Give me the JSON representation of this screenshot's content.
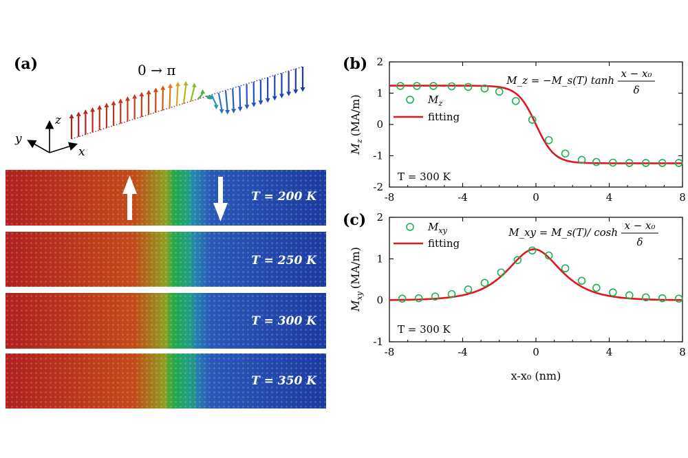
{
  "panel_a": {
    "label": "(a)",
    "rotation_label": "0 → π",
    "axes": {
      "z": "z",
      "y": "y",
      "x": "x"
    },
    "snapshots": [
      {
        "temp_label": "T = 200 K",
        "wall_width": 1.0
      },
      {
        "temp_label": "T = 250 K",
        "wall_width": 1.15
      },
      {
        "temp_label": "T = 300 K",
        "wall_width": 1.3
      },
      {
        "temp_label": "T = 350 K",
        "wall_width": 1.5
      }
    ],
    "colors": {
      "up": "#b22222",
      "down": "#1f3fa8",
      "wall": "#22aa44"
    }
  },
  "chart_data": [
    {
      "type": "scatter+line",
      "panel_label": "(b)",
      "quantity": "Mz",
      "ylabel_main": "M",
      "ylabel_sub": "z",
      "ylabel_unit": "(MA/m)",
      "xlabel": "",
      "xlim": [
        -8,
        8
      ],
      "ylim": [
        -2,
        2
      ],
      "xticks": [
        "-8",
        "-4",
        "0",
        "4",
        "8"
      ],
      "yticks": [
        "2",
        "1",
        "0",
        "-1",
        "-2"
      ],
      "legend_symbol": "M",
      "legend_symbol_sub": "z",
      "legend_fit": "fitting",
      "annotation": "T = 300 K",
      "formula_lhs": "M_z = −M_s(T) tanh",
      "formula_num": "x − x₀",
      "formula_den": "δ",
      "fit": {
        "Ms": 1.24,
        "x0": 0,
        "delta": 1.0,
        "kind": "tanh"
      },
      "points": {
        "x": [
          -7.4,
          -6.5,
          -5.6,
          -4.6,
          -3.7,
          -2.8,
          -2.0,
          -1.1,
          -0.2,
          0.7,
          1.6,
          2.5,
          3.3,
          4.2,
          5.1,
          6.0,
          6.9,
          7.8
        ],
        "y": [
          1.23,
          1.23,
          1.23,
          1.22,
          1.2,
          1.15,
          1.05,
          0.75,
          0.15,
          -0.5,
          -0.93,
          -1.13,
          -1.2,
          -1.22,
          -1.23,
          -1.23,
          -1.23,
          -1.23
        ]
      },
      "colors": {
        "points": "#1fae52",
        "fit": "#e0161c"
      }
    },
    {
      "type": "scatter+line",
      "panel_label": "(c)",
      "quantity": "Mxy",
      "ylabel_main": "M",
      "ylabel_sub": "xy",
      "ylabel_unit": "(MA/m)",
      "xlabel": "x-x₀ (nm)",
      "xlim": [
        -8,
        8
      ],
      "ylim": [
        -1,
        2
      ],
      "xticks": [
        "-8",
        "-4",
        "0",
        "4",
        "8"
      ],
      "yticks": [
        "2",
        "1",
        "0",
        "-1"
      ],
      "legend_symbol": "M",
      "legend_symbol_sub": "xy",
      "legend_fit": "fitting",
      "annotation": "T = 300 K",
      "formula_lhs": "M_xy = M_s(T)/ cosh",
      "formula_num": "x − x₀",
      "formula_den": "δ",
      "fit": {
        "Ms": 1.23,
        "x0": -0.1,
        "delta": 1.3,
        "kind": "sech"
      },
      "points": {
        "x": [
          -7.3,
          -6.4,
          -5.5,
          -4.6,
          -3.7,
          -2.8,
          -1.9,
          -1.0,
          -0.2,
          0.7,
          1.6,
          2.5,
          3.3,
          4.2,
          5.1,
          6.0,
          6.9,
          7.8
        ],
        "y": [
          0.04,
          0.05,
          0.09,
          0.15,
          0.26,
          0.42,
          0.67,
          0.97,
          1.2,
          1.08,
          0.77,
          0.47,
          0.3,
          0.19,
          0.12,
          0.07,
          0.05,
          0.04
        ]
      },
      "colors": {
        "points": "#1fae52",
        "fit": "#e0161c"
      }
    }
  ]
}
